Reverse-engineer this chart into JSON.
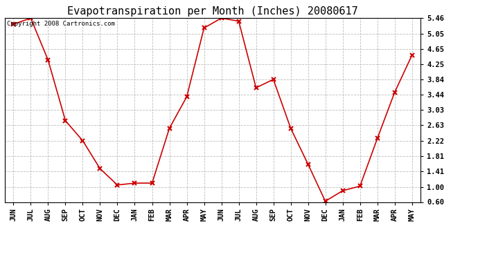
{
  "title": "Evapotranspiration per Month (Inches) 20080617",
  "copyright_text": "Copyright 2008 Cartronics.com",
  "months": [
    "JUN",
    "JUL",
    "AUG",
    "SEP",
    "OCT",
    "NOV",
    "DEC",
    "JAN",
    "FEB",
    "MAR",
    "APR",
    "MAY",
    "JUN",
    "JUL",
    "AUG",
    "SEP",
    "OCT",
    "NOV",
    "DEC",
    "JAN",
    "FEB",
    "MAR",
    "APR",
    "MAY"
  ],
  "values": [
    5.3,
    5.46,
    4.35,
    2.75,
    2.22,
    1.48,
    1.05,
    1.1,
    1.1,
    2.55,
    3.38,
    5.2,
    5.46,
    5.38,
    3.62,
    3.84,
    2.55,
    1.6,
    0.62,
    0.9,
    1.02,
    2.28,
    3.5,
    4.48
  ],
  "yticks": [
    0.6,
    1.0,
    1.41,
    1.81,
    2.22,
    2.63,
    3.03,
    3.44,
    3.84,
    4.25,
    4.65,
    5.05,
    5.46
  ],
  "line_color": "#cc0000",
  "marker": "x",
  "marker_color": "#cc0000",
  "bg_color": "#ffffff",
  "plot_bg_color": "#ffffff",
  "grid_color": "#bbbbbb",
  "title_fontsize": 11,
  "tick_fontsize": 7.5,
  "copyright_fontsize": 6.5
}
